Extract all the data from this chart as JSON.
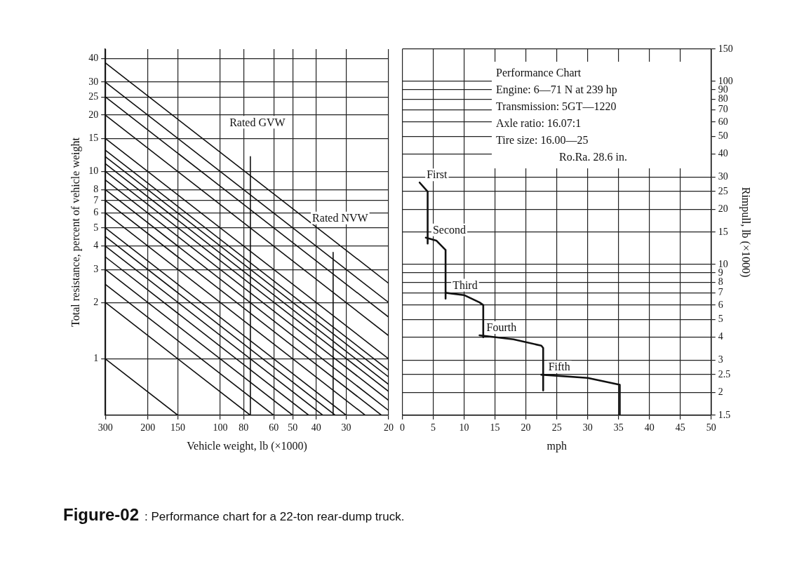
{
  "chart_data": [
    {
      "type": "line",
      "xlabel": "Vehicle weight, lb (×1000)",
      "ylabel": "Total resistance, percent of vehicle weight",
      "log": "xy",
      "grid": true,
      "marker": "none",
      "xlim": [
        300,
        20
      ],
      "xticks": [
        300,
        200,
        150,
        100,
        80,
        60,
        50,
        40,
        30,
        20
      ],
      "ylim": [
        0.5,
        45
      ],
      "yticks": [
        1,
        2,
        3,
        4,
        5,
        6,
        7,
        8,
        10,
        15,
        20,
        25,
        30,
        40
      ],
      "series": [
        {
          "color": "#111111",
          "x": [
            300,
            20
          ],
          "values": [
            38,
            2.53
          ]
        },
        {
          "color": "#111111",
          "x": [
            300,
            20
          ],
          "values": [
            30,
            2
          ]
        },
        {
          "color": "#111111",
          "x": [
            300,
            20
          ],
          "values": [
            25,
            1.67
          ]
        },
        {
          "color": "#111111",
          "x": [
            300,
            20
          ],
          "values": [
            20,
            1.33
          ]
        },
        {
          "color": "#111111",
          "x": [
            300,
            20
          ],
          "values": [
            15,
            1
          ]
        },
        {
          "color": "#111111",
          "x": [
            300,
            20
          ],
          "values": [
            13,
            0.87
          ]
        },
        {
          "color": "#111111",
          "x": [
            300,
            20
          ],
          "values": [
            12,
            0.8
          ]
        },
        {
          "color": "#111111",
          "x": [
            300,
            20
          ],
          "values": [
            11,
            0.73
          ]
        },
        {
          "color": "#111111",
          "x": [
            300,
            20
          ],
          "values": [
            10,
            0.67
          ]
        },
        {
          "color": "#111111",
          "x": [
            300,
            20
          ],
          "values": [
            9,
            0.6
          ]
        },
        {
          "color": "#111111",
          "x": [
            300,
            20
          ],
          "values": [
            8,
            0.53
          ]
        },
        {
          "color": "#111111",
          "x": [
            300,
            21.4
          ],
          "values": [
            7,
            0.5
          ]
        },
        {
          "color": "#111111",
          "x": [
            300,
            25
          ],
          "values": [
            6,
            0.5
          ]
        },
        {
          "color": "#111111",
          "x": [
            300,
            30
          ],
          "values": [
            5,
            0.5
          ]
        },
        {
          "color": "#111111",
          "x": [
            300,
            33.3
          ],
          "values": [
            4.5,
            0.5
          ]
        },
        {
          "color": "#111111",
          "x": [
            300,
            37.5
          ],
          "values": [
            4,
            0.5
          ]
        },
        {
          "color": "#111111",
          "x": [
            300,
            42.9
          ],
          "values": [
            3.5,
            0.5
          ]
        },
        {
          "color": "#111111",
          "x": [
            300,
            50
          ],
          "values": [
            3,
            0.5
          ]
        },
        {
          "color": "#111111",
          "x": [
            300,
            60
          ],
          "values": [
            2.5,
            0.5
          ]
        },
        {
          "color": "#111111",
          "x": [
            300,
            75
          ],
          "values": [
            2,
            0.5
          ]
        },
        {
          "color": "#111111",
          "x": [
            300,
            150
          ],
          "values": [
            1,
            0.5
          ]
        },
        {
          "color": "#111111",
          "x": [
            75,
            75
          ],
          "values": [
            12,
            0.5
          ]
        },
        {
          "color": "#111111",
          "x": [
            34,
            34
          ],
          "values": [
            3.7,
            0.5
          ]
        }
      ],
      "annotations": [
        {
          "text": "Rated GVW",
          "x": 75,
          "y": 12
        },
        {
          "text": "Rated NVW",
          "x": 34,
          "y": 3.7
        },
        "Figure-02 : Performance chart for a 22-ton rear-dump truck."
      ]
    },
    {
      "type": "line",
      "xlabel": "mph",
      "y2label": "Rimpull, lb (×1000)",
      "log": "y2",
      "grid": true,
      "marker": "none",
      "xlim": [
        0,
        50
      ],
      "xticks": [
        0,
        5,
        10,
        15,
        20,
        25,
        30,
        35,
        40,
        45,
        50
      ],
      "y2lim": [
        1.5,
        150
      ],
      "y2ticks": [
        1.5,
        2,
        2.5,
        3,
        4,
        5,
        6,
        7,
        8,
        9,
        10,
        15,
        20,
        25,
        30,
        40,
        50,
        60,
        70,
        80,
        90,
        100,
        150
      ],
      "series": [
        {
          "name": "First",
          "color": "#111111",
          "axis": "y2",
          "x": [
            2.8,
            4.1,
            4.1
          ],
          "values": [
            28,
            25,
            13
          ]
        },
        {
          "name": "Second",
          "color": "#111111",
          "axis": "y2",
          "x": [
            3.8,
            5.5,
            7,
            7
          ],
          "values": [
            14,
            13.5,
            12,
            6.5
          ]
        },
        {
          "name": "Third",
          "color": "#111111",
          "axis": "y2",
          "x": [
            7,
            10,
            12.5,
            13.1,
            13.1
          ],
          "values": [
            7,
            6.8,
            6.2,
            6,
            4
          ]
        },
        {
          "name": "Fourth",
          "color": "#111111",
          "axis": "y2",
          "x": [
            12.5,
            18,
            22.5,
            22.8,
            22.8
          ],
          "values": [
            4.1,
            3.9,
            3.6,
            3.5,
            2.05
          ]
        },
        {
          "name": "Fifth",
          "color": "#111111",
          "axis": "y2",
          "x": [
            22.5,
            30,
            35.2,
            35.2
          ],
          "values": [
            2.5,
            2.4,
            2.2,
            1.5
          ]
        }
      ],
      "annotations": [
        "Performance Chart",
        "Engine: 6—71 N at 239 hp",
        "Transmission: 5GT—1220",
        "Axle ratio: 16.07:1",
        "Tire size: 16.00—25",
        "Ro.Ra. 28.6 in."
      ]
    }
  ]
}
